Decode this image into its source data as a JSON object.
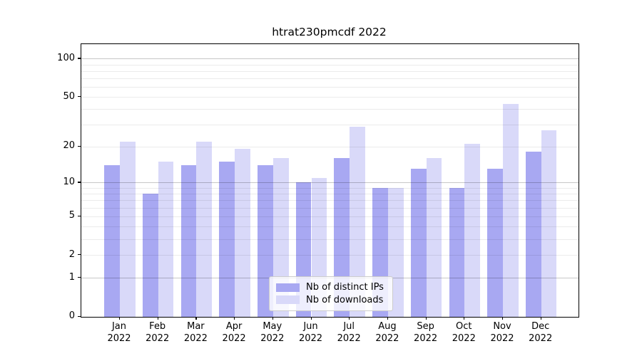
{
  "chart_data": {
    "type": "bar",
    "title": "htrat230pmcdf 2022",
    "categories": [
      "Jan 2022",
      "Feb 2022",
      "Mar 2022",
      "Apr 2022",
      "May 2022",
      "Jun 2022",
      "Jul 2022",
      "Aug 2022",
      "Sep 2022",
      "Oct 2022",
      "Nov 2022",
      "Dec 2022"
    ],
    "series": [
      {
        "name": "Nb of distinct IPs",
        "color": "#a8a8f2",
        "values": [
          14,
          8,
          14,
          15,
          14,
          10,
          16,
          9,
          13,
          9,
          13,
          18
        ]
      },
      {
        "name": "Nb of downloads",
        "color": "#d9d9f9",
        "values": [
          22,
          15,
          22,
          19,
          16,
          11,
          29,
          9,
          16,
          21,
          44,
          27
        ]
      }
    ],
    "yscale": "log1p",
    "ylim": [
      0,
      130
    ],
    "yticks": [
      100,
      50,
      20,
      10,
      5,
      2,
      1,
      0
    ],
    "grid": true,
    "legend_position": "lower center",
    "colors": {
      "major_grid": "#c9c9c9",
      "minor_grid": "#ebebeb",
      "axis": "#000000"
    }
  }
}
